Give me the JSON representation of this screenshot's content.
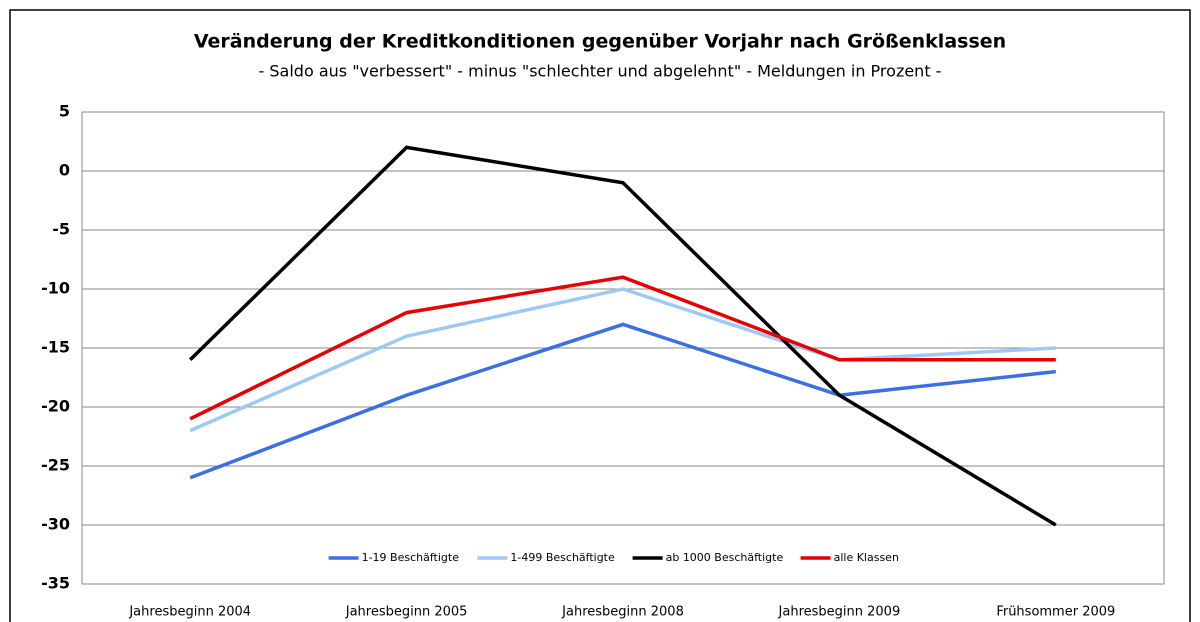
{
  "chart_data": {
    "type": "line",
    "title": "Veränderung der Kreditkonditionen gegenüber Vorjahr nach Größenklassen",
    "subtitle": "- Saldo aus \"verbessert\" - minus \"schlechter und abgelehnt\" - Meldungen in Prozent -",
    "categories": [
      "Jahresbeginn 2004",
      "Jahresbeginn 2005",
      "Jahresbeginn 2008",
      "Jahresbeginn 2009",
      "Frühsommer 2009"
    ],
    "series": [
      {
        "name": "1-19 Beschäftigte",
        "color": "#3c6ee6",
        "values": [
          -26,
          -19,
          -13,
          -19,
          -17
        ]
      },
      {
        "name": "1-499 Beschäftigte",
        "color": "#9ec9f5",
        "values": [
          -22,
          -14,
          -10,
          -16,
          -15
        ]
      },
      {
        "name": "ab 1000 Beschäftigte",
        "color": "#000000",
        "values": [
          -16,
          2,
          -1,
          -19,
          -30
        ]
      },
      {
        "name": "alle Klassen",
        "color": "#e60000",
        "values": [
          -21,
          -12,
          -9,
          -16,
          -16
        ]
      }
    ],
    "ylim": [
      -35,
      5
    ],
    "yticks": [
      -35,
      -30,
      -25,
      -20,
      -15,
      -10,
      -5,
      0,
      5
    ],
    "grid": true,
    "legend": "bottom"
  }
}
